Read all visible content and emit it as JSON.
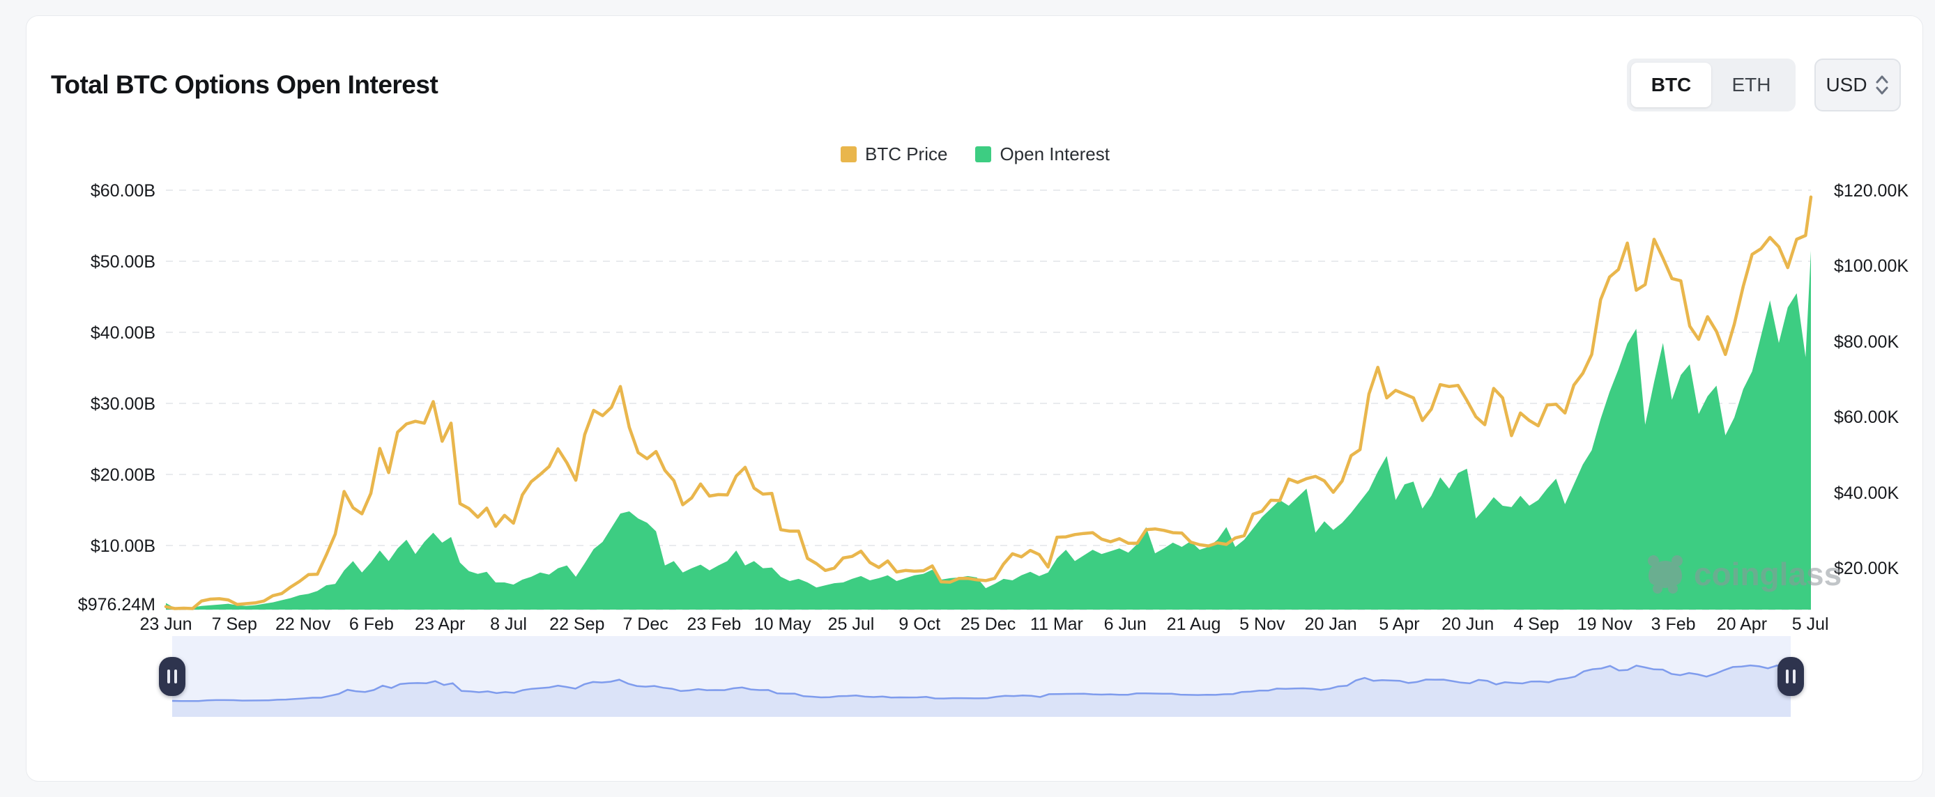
{
  "header": {
    "title": "Total BTC Options Open Interest",
    "asset_toggle": {
      "options": [
        "BTC",
        "ETH"
      ],
      "active": "BTC"
    },
    "currency_select": {
      "value": "USD"
    }
  },
  "legend": [
    {
      "label": "BTC Price",
      "color": "#E9B64C"
    },
    {
      "label": "Open Interest",
      "color": "#3DCD82"
    }
  ],
  "watermark": {
    "text": "coinglass"
  },
  "colors": {
    "price_line": "#E9B64C",
    "oi_area": "#3DCD82",
    "gridline": "#e9ebee",
    "axis_text": "#17191d",
    "nav_bg": "#edf1fc",
    "nav_line": "#7f9ced",
    "nav_fill": "#dbe3f8",
    "handle": "#2e344e"
  },
  "chart_data": {
    "type": "area",
    "title": "Total BTC Options Open Interest",
    "x_tick_labels": [
      "23 Jun",
      "7 Sep",
      "22 Nov",
      "6 Feb",
      "23 Apr",
      "8 Jul",
      "22 Sep",
      "7 Dec",
      "23 Feb",
      "10 May",
      "25 Jul",
      "9 Oct",
      "25 Dec",
      "11 Mar",
      "6 Jun",
      "21 Aug",
      "5 Nov",
      "20 Jan",
      "5 Apr",
      "20 Jun",
      "4 Sep",
      "19 Nov",
      "3 Feb",
      "20 Apr",
      "5 Jul"
    ],
    "x_day_step": 10,
    "x_total_days": 1846,
    "left_axis": {
      "title": "Open Interest (USD)",
      "tick_labels": [
        "$60.00B",
        "$50.00B",
        "$40.00B",
        "$30.00B",
        "$20.00B",
        "$10.00B"
      ],
      "min_label": "$976.24M",
      "min_value_b": 0.976,
      "max_value_b": 60
    },
    "right_axis": {
      "title": "BTC Price (USD)",
      "tick_labels": [
        "$120.00K",
        "$100.00K",
        "$80.00K",
        "$60.00K",
        "$40.00K",
        "$20.00K"
      ],
      "min_value_k": 8.9,
      "max_value_k": 120
    },
    "grid": true,
    "legend_position": "top-center",
    "series": [
      {
        "name": "BTC Price",
        "type": "line",
        "axis": "right",
        "unit": "USD thousands",
        "values": [
          9.7,
          9.2,
          9.3,
          9.2,
          11.2,
          11.7,
          11.8,
          11.5,
          10.3,
          10.5,
          10.7,
          11.2,
          12.6,
          13.2,
          14.9,
          16.4,
          18.2,
          18.3,
          23.4,
          28.9,
          40.2,
          35.9,
          34.3,
          39.7,
          51.6,
          45.2,
          55.9,
          58.1,
          58.8,
          58.3,
          64.0,
          53.5,
          58.3,
          37.0,
          35.7,
          33.4,
          35.8,
          31.0,
          33.9,
          31.8,
          39.3,
          42.8,
          44.7,
          46.8,
          51.5,
          47.8,
          43.2,
          55.3,
          61.7,
          60.3,
          62.5,
          68.0,
          57.2,
          50.5,
          48.9,
          50.8,
          45.8,
          43.1,
          36.7,
          38.5,
          42.2,
          39.0,
          39.4,
          39.3,
          44.3,
          46.6,
          41.1,
          39.5,
          39.7,
          30.1,
          29.7,
          29.7,
          22.5,
          21.1,
          19.3,
          19.9,
          22.6,
          23.0,
          24.4,
          21.4,
          20.1,
          21.8,
          18.9,
          19.3,
          19.1,
          19.2,
          20.5,
          16.3,
          16.2,
          17.2,
          17.2,
          16.8,
          16.6,
          17.2,
          21.0,
          23.7,
          22.9,
          24.6,
          23.5,
          20.2,
          28.1,
          28.2,
          28.8,
          29.1,
          29.3,
          27.6,
          26.9,
          27.7,
          26.5,
          26.5,
          30.1,
          30.3,
          29.9,
          29.3,
          29.2,
          26.8,
          26.1,
          25.8,
          26.6,
          26.2,
          27.9,
          28.5,
          34.2,
          35.0,
          37.9,
          37.8,
          43.5,
          42.6,
          43.6,
          44.2,
          43.0,
          40.0,
          43.0,
          49.7,
          51.3,
          66.0,
          73.1,
          65.0,
          67.0,
          66.0,
          65.0,
          59.0,
          62.0,
          68.5,
          68.0,
          68.3,
          64.3,
          60.0,
          57.9,
          67.5,
          65.0,
          55.0,
          61.0,
          59.0,
          57.6,
          63.1,
          63.3,
          61.0,
          68.4,
          71.5,
          76.5,
          91.0,
          97.0,
          99.0,
          106.0,
          93.5,
          95.0,
          107.0,
          102.0,
          96.6,
          96.0,
          84.0,
          80.5,
          86.5,
          82.6,
          76.5,
          84.5,
          94.5,
          103.0,
          104.5,
          107.5,
          105.0,
          99.5,
          107.0,
          108.0,
          118.2
        ]
      },
      {
        "name": "Open Interest",
        "type": "area",
        "axis": "left",
        "unit": "USD billions",
        "values": [
          1.9,
          1.2,
          1.3,
          1.3,
          1.5,
          1.6,
          1.7,
          1.8,
          1.6,
          1.5,
          1.6,
          1.8,
          2.0,
          2.3,
          2.6,
          3.0,
          3.2,
          3.6,
          4.4,
          4.6,
          6.5,
          7.8,
          6.2,
          7.6,
          9.3,
          7.8,
          9.6,
          10.8,
          8.8,
          10.5,
          11.8,
          10.4,
          11.2,
          7.6,
          6.4,
          6.0,
          6.3,
          4.8,
          4.8,
          4.5,
          5.2,
          5.6,
          6.2,
          5.9,
          6.8,
          7.2,
          5.6,
          7.5,
          9.5,
          10.5,
          12.5,
          14.5,
          14.8,
          13.8,
          13.2,
          12.0,
          7.2,
          7.8,
          6.2,
          6.8,
          7.3,
          6.5,
          7.2,
          7.8,
          9.3,
          7.2,
          7.8,
          6.8,
          6.9,
          5.6,
          5.0,
          5.3,
          4.8,
          4.1,
          4.4,
          4.7,
          4.8,
          5.3,
          5.7,
          5.1,
          5.4,
          5.8,
          5.0,
          5.4,
          5.8,
          6.0,
          6.6,
          5.2,
          5.4,
          5.5,
          5.7,
          5.5,
          4.0,
          4.6,
          5.3,
          5.1,
          5.8,
          6.3,
          5.7,
          6.2,
          8.2,
          9.4,
          7.8,
          8.6,
          9.4,
          8.8,
          9.2,
          9.6,
          9.0,
          10.2,
          12.6,
          8.9,
          9.6,
          10.4,
          9.8,
          10.6,
          9.4,
          9.8,
          10.8,
          12.6,
          9.8,
          10.8,
          12.4,
          14.0,
          15.2,
          16.4,
          15.6,
          16.8,
          18.0,
          11.8,
          13.4,
          12.2,
          13.2,
          14.6,
          16.2,
          17.8,
          20.4,
          22.6,
          16.4,
          18.6,
          19.0,
          15.2,
          17.0,
          19.6,
          18.0,
          20.2,
          20.8,
          13.8,
          15.2,
          16.8,
          15.6,
          15.4,
          17.0,
          15.6,
          16.4,
          18.0,
          19.4,
          15.8,
          18.6,
          21.4,
          23.4,
          27.8,
          31.6,
          34.8,
          38.4,
          40.5,
          27.0,
          33.0,
          38.5,
          30.5,
          34.0,
          35.5,
          28.5,
          31.0,
          32.5,
          25.5,
          28.0,
          32.0,
          34.5,
          39.5,
          44.5,
          38.5,
          43.5,
          45.5,
          36.5,
          51.5
        ]
      }
    ]
  }
}
